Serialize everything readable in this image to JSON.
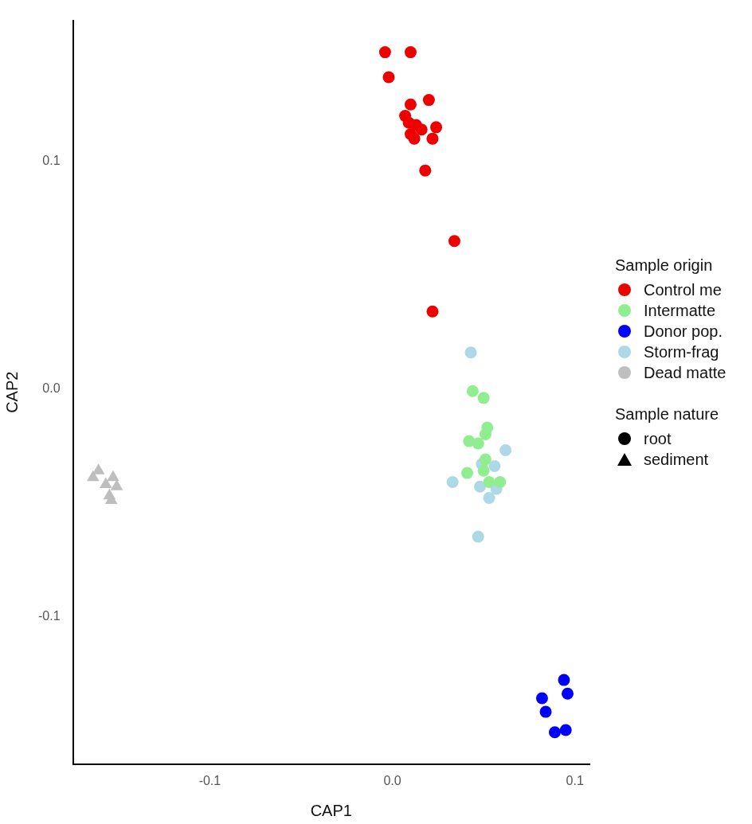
{
  "chart_data": {
    "type": "scatter",
    "xlabel": "CAP1",
    "ylabel": "CAP2",
    "legend_title": "Sample origin",
    "legend": "right",
    "grid": false,
    "xlim": [
      -0.175,
      0.108
    ],
    "xticks": [
      {
        "value": -0.1,
        "label": "-0.1"
      },
      {
        "value": 0,
        "label": "0.0"
      },
      {
        "value": 0.1,
        "label": "0.1"
      }
    ],
    "ylim": [
      -0.165,
      0.162
    ],
    "yticks": [
      {
        "value": -0.1,
        "label": "-0.1"
      },
      {
        "value": 0,
        "label": "0.0"
      },
      {
        "value": 0.1,
        "label": "0.1"
      }
    ],
    "annotations": [
      "Sample nature",
      "root",
      "sediment"
    ],
    "series": [
      {
        "name": "Control me",
        "color": "#ee0000",
        "marker": "circle",
        "x": [
          -0.004,
          0.01,
          -0.002,
          0.02,
          0.01,
          0.007,
          0.009,
          0.013,
          0.01,
          0.012,
          0.016,
          0.024,
          0.022,
          0.018,
          0.034,
          0.022
        ],
        "values": [
          0.148,
          0.148,
          0.137,
          0.127,
          0.125,
          0.12,
          0.117,
          0.116,
          0.112,
          0.11,
          0.114,
          0.115,
          0.11,
          0.096,
          0.065,
          0.034
        ]
      },
      {
        "name": "Intermatte",
        "color": "#90ee90",
        "marker": "circle",
        "x": [
          0.044,
          0.05,
          0.052,
          0.051,
          0.042,
          0.047,
          0.051,
          0.041,
          0.05,
          0.053,
          0.059
        ],
        "values": [
          -0.001,
          -0.004,
          -0.017,
          -0.02,
          -0.023,
          -0.024,
          -0.031,
          -0.037,
          -0.036,
          -0.041,
          -0.041
        ]
      },
      {
        "name": "Donor pop.",
        "color": "#0000ff",
        "marker": "circle",
        "x": [
          0.094,
          0.096,
          0.082,
          0.084,
          0.089,
          0.095
        ],
        "values": [
          -0.128,
          -0.134,
          -0.136,
          -0.142,
          -0.151,
          -0.15
        ]
      },
      {
        "name": "Storm-frag",
        "color": "#add8e6",
        "marker": "circle",
        "x": [
          0.043,
          0.062,
          0.049,
          0.056,
          0.033,
          0.048,
          0.053,
          0.057,
          0.047
        ],
        "values": [
          0.016,
          -0.027,
          -0.033,
          -0.034,
          -0.041,
          -0.043,
          -0.048,
          -0.044,
          -0.065
        ]
      },
      {
        "name": "Dead matte",
        "color": "#bebebe",
        "marker": "triangle",
        "x": [
          -0.161,
          -0.164,
          -0.153,
          -0.157,
          -0.151,
          -0.155,
          -0.154
        ],
        "values": [
          -0.036,
          -0.039,
          -0.039,
          -0.042,
          -0.043,
          -0.047,
          -0.049
        ]
      }
    ]
  }
}
